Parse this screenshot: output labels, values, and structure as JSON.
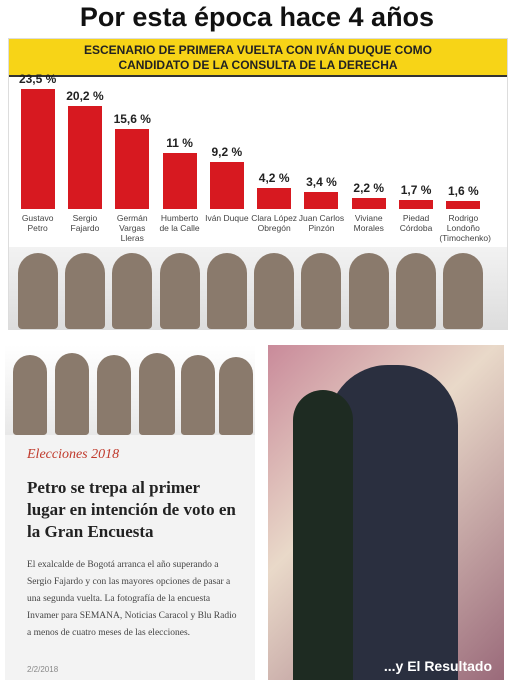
{
  "header": {
    "title": "Por esta época hace 4 años"
  },
  "chart_data": {
    "type": "bar",
    "title": "ESCENARIO DE PRIMERA VUELTA CON IVÁN DUQUE COMO CANDIDATO DE LA CONSULTA DE LA DERECHA",
    "categories": [
      "Gustavo Petro",
      "Sergio Fajardo",
      "Germán Vargas Lleras",
      "Humberto de la Calle",
      "Iván Duque",
      "Clara López Obregón",
      "Juan Carlos Pinzón",
      "Viviane Morales",
      "Piedad Córdoba",
      "Rodrigo Londoño (Timochenko)"
    ],
    "values": [
      23.5,
      20.2,
      15.6,
      11,
      9.2,
      4.2,
      3.4,
      2.2,
      1.7,
      1.6
    ],
    "value_labels": [
      "23,5 %",
      "20,2 %",
      "15,6 %",
      "11 %",
      "9,2 %",
      "4,2 %",
      "3,4 %",
      "2,2 %",
      "1,7 %",
      "1,6 %"
    ],
    "color": "#d71920"
  },
  "article": {
    "section": "Elecciones 2018",
    "headline": "Petro se trepa al primer lugar en intención de voto en la Gran Encuesta",
    "body": "El exalcalde de Bogotá arranca el año superando a Sergio Fajardo y con las mayores opciones de pasar a una segunda vuelta. La fotografía de la encuesta Invamer para SEMANA, Noticias Caracol y Blu Radio a menos de cuatro meses de las elecciones.",
    "date": "2/2/2018"
  },
  "photo": {
    "caption": "...y El Resultado"
  }
}
